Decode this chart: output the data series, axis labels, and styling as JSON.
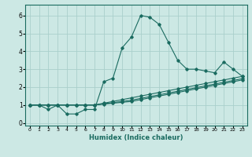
{
  "xlabel": "Humidex (Indice chaleur)",
  "background_color": "#cce8e4",
  "grid_color": "#aacfcb",
  "line_color": "#1a6b60",
  "xlim": [
    -0.5,
    23.5
  ],
  "ylim": [
    -0.15,
    6.6
  ],
  "xticks": [
    0,
    1,
    2,
    3,
    4,
    5,
    6,
    7,
    8,
    9,
    10,
    11,
    12,
    13,
    14,
    15,
    16,
    17,
    18,
    19,
    20,
    21,
    22,
    23
  ],
  "yticks": [
    0,
    1,
    2,
    3,
    4,
    5,
    6
  ],
  "series": [
    {
      "x": [
        0,
        1,
        2,
        3,
        4,
        5,
        6,
        7,
        8,
        9,
        10,
        11,
        12,
        13,
        14,
        15,
        16,
        17,
        18,
        19,
        20,
        21,
        22,
        23
      ],
      "y": [
        1.0,
        1.0,
        0.75,
        1.0,
        0.5,
        0.5,
        0.75,
        0.75,
        2.3,
        2.5,
        4.2,
        4.8,
        6.0,
        5.9,
        5.5,
        4.5,
        3.5,
        3.0,
        3.0,
        2.9,
        2.8,
        3.4,
        3.0,
        2.6
      ]
    },
    {
      "x": [
        0,
        1,
        2,
        3,
        4,
        5,
        6,
        7,
        8,
        9,
        10,
        11,
        12,
        13,
        14,
        15,
        16,
        17,
        18,
        19,
        20,
        21,
        22,
        23
      ],
      "y": [
        1.0,
        1.0,
        1.0,
        1.0,
        1.0,
        1.0,
        1.0,
        1.0,
        1.05,
        1.1,
        1.15,
        1.2,
        1.3,
        1.4,
        1.5,
        1.6,
        1.7,
        1.8,
        1.9,
        2.0,
        2.1,
        2.2,
        2.3,
        2.4
      ]
    },
    {
      "x": [
        0,
        1,
        2,
        3,
        4,
        5,
        6,
        7,
        8,
        9,
        10,
        11,
        12,
        13,
        14,
        15,
        16,
        17,
        18,
        19,
        20,
        21,
        22,
        23
      ],
      "y": [
        1.0,
        1.0,
        1.0,
        1.0,
        1.0,
        1.0,
        1.0,
        1.0,
        1.07,
        1.13,
        1.2,
        1.27,
        1.37,
        1.47,
        1.57,
        1.67,
        1.77,
        1.87,
        1.97,
        2.07,
        2.17,
        2.27,
        2.37,
        2.47
      ]
    },
    {
      "x": [
        0,
        1,
        2,
        3,
        4,
        5,
        6,
        7,
        8,
        9,
        10,
        11,
        12,
        13,
        14,
        15,
        16,
        17,
        18,
        19,
        20,
        21,
        22,
        23
      ],
      "y": [
        1.0,
        1.0,
        1.0,
        1.0,
        1.0,
        1.0,
        1.0,
        1.0,
        1.1,
        1.2,
        1.3,
        1.4,
        1.5,
        1.6,
        1.7,
        1.8,
        1.9,
        2.0,
        2.1,
        2.2,
        2.3,
        2.4,
        2.5,
        2.6
      ]
    }
  ]
}
